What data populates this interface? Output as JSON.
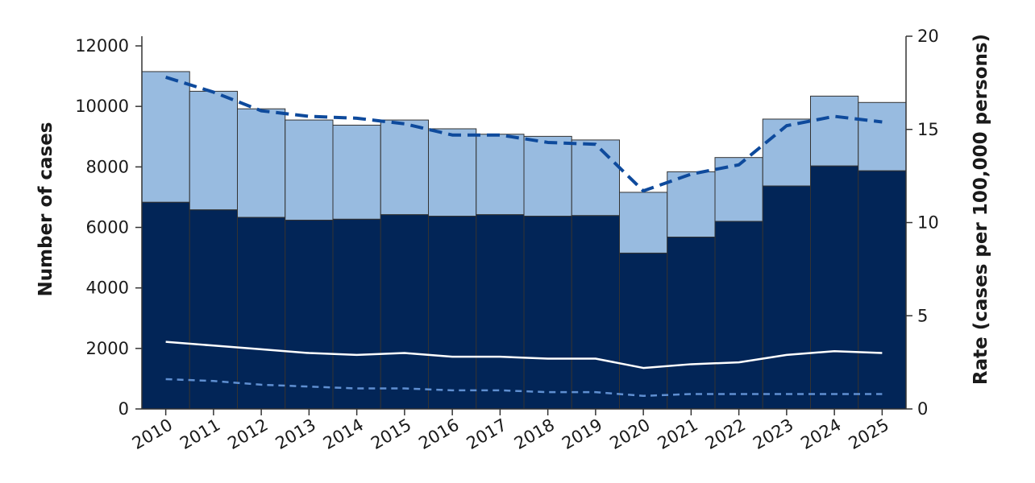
{
  "chart_data": {
    "type": "bar",
    "title": "",
    "xlabel": "",
    "ylabel": "Number of cases",
    "y2label": "Rate (cases per 100,000 persons)",
    "ylim": [
      0,
      12300
    ],
    "y2lim": [
      0,
      20
    ],
    "yticks": [
      0,
      2000,
      4000,
      6000,
      8000,
      10000,
      12000
    ],
    "y2ticks": [
      0,
      5,
      10,
      15,
      20
    ],
    "grid": false,
    "legend": "none",
    "stacked": true,
    "categories": [
      "2010",
      "2011",
      "2012",
      "2013",
      "2014",
      "2015",
      "2016",
      "2017",
      "2018",
      "2019",
      "2020",
      "2021",
      "2022",
      "2023",
      "2024",
      "2025"
    ],
    "series": [
      {
        "role": "bar-bottom",
        "color": "#022557",
        "values": [
          6830,
          6580,
          6330,
          6240,
          6270,
          6420,
          6370,
          6420,
          6370,
          6390,
          5150,
          5680,
          6200,
          7370,
          8030,
          7870
        ]
      },
      {
        "role": "bar-top",
        "color": "#98bbe0",
        "values": [
          4320,
          3920,
          3590,
          3310,
          3110,
          3130,
          2890,
          2660,
          2640,
          2500,
          2010,
          2160,
          2110,
          2210,
          2310,
          2260
        ]
      },
      {
        "role": "line-dashed-thick",
        "axis": "right",
        "color": "#0e4a9c",
        "values": [
          17.8,
          17.0,
          16.0,
          15.7,
          15.6,
          15.3,
          14.7,
          14.7,
          14.3,
          14.2,
          11.7,
          12.6,
          13.1,
          15.2,
          15.7,
          15.4
        ]
      },
      {
        "role": "line-solid",
        "axis": "right",
        "color": "#ffffff",
        "values": [
          3.6,
          3.4,
          3.2,
          3.0,
          2.9,
          3.0,
          2.8,
          2.8,
          2.7,
          2.7,
          2.2,
          2.4,
          2.5,
          2.9,
          3.1,
          3.0
        ]
      },
      {
        "role": "line-dashed-thin",
        "axis": "right",
        "color": "#5f8fd1",
        "values": [
          1.6,
          1.5,
          1.3,
          1.2,
          1.1,
          1.1,
          1.0,
          1.0,
          0.9,
          0.9,
          0.7,
          0.8,
          0.8,
          0.8,
          0.8,
          0.8
        ]
      }
    ]
  }
}
